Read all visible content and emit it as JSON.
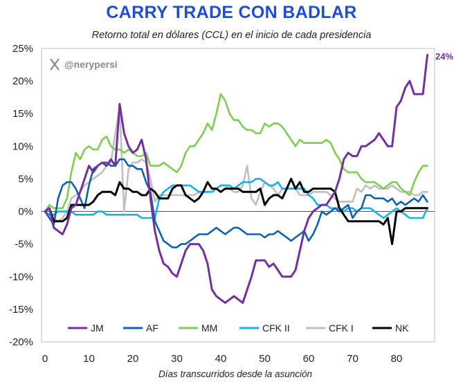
{
  "title": "CARRY TRADE CON BADLAR",
  "subtitle": "Retorno total en dólares (CCL) en el inicio de cada presidencia",
  "watermark": "@nerypersi",
  "chart_data": {
    "type": "line",
    "title": "CARRY TRADE CON BADLAR",
    "subtitle": "Retorno total en dólares (CCL) en el inicio de cada presidencia",
    "xlabel": "Días transcurridos desde la asunción",
    "ylabel": "",
    "xlim": [
      0,
      88
    ],
    "ylim": [
      -20,
      25
    ],
    "xticks": [
      0,
      10,
      20,
      30,
      40,
      50,
      60,
      70,
      80
    ],
    "yticks": [
      25,
      20,
      15,
      10,
      5,
      0,
      -5,
      -10,
      -15,
      -20
    ],
    "ytick_labels": [
      "25%",
      "20%",
      "15%",
      "10%",
      "5%",
      "0%",
      "-5%",
      "-10%",
      "-15%",
      "-20%"
    ],
    "legend_position": "bottom",
    "end_label": {
      "series": "JM",
      "text": "24%"
    },
    "series": [
      {
        "name": "JM",
        "color": "#7030a0",
        "x": [
          0,
          1,
          2,
          3,
          4,
          5,
          6,
          7,
          8,
          9,
          10,
          11,
          12,
          13,
          14,
          15,
          16,
          17,
          18,
          19,
          20,
          21,
          22,
          23,
          24,
          25,
          26,
          27,
          28,
          29,
          30,
          31,
          32,
          33,
          34,
          35,
          36,
          37,
          38,
          39,
          40,
          41,
          42,
          43,
          44,
          45,
          46,
          47,
          48,
          49,
          50,
          51,
          52,
          53,
          54,
          55,
          56,
          57,
          58,
          59,
          60,
          61,
          62,
          63,
          64,
          65,
          66,
          67,
          68,
          69,
          70,
          71,
          72,
          73,
          74,
          75,
          76,
          77,
          78,
          79,
          80,
          81,
          82,
          83,
          84,
          85,
          86,
          87
        ],
        "values": [
          0,
          0.5,
          -2.5,
          -3,
          -3.5,
          -2,
          0.5,
          1,
          3,
          5,
          7,
          6,
          7,
          7.5,
          7,
          8,
          7,
          16.5,
          12,
          10,
          9,
          9.5,
          11,
          8,
          2,
          -3,
          -6,
          -8,
          -8.5,
          -9.5,
          -10,
          -8,
          -6,
          -5,
          -5,
          -5,
          -6,
          -8,
          -12,
          -13,
          -13.5,
          -14,
          -13.5,
          -13,
          -13.5,
          -14,
          -12,
          -10,
          -7.5,
          -7.5,
          -7.5,
          -8.5,
          -8,
          -9,
          -10,
          -10,
          -10,
          -9,
          -6,
          -3,
          -1,
          0,
          0.5,
          1,
          1,
          2,
          3,
          5,
          8,
          9,
          8.5,
          8.5,
          10,
          10,
          10.5,
          11,
          12,
          11,
          10,
          10,
          16,
          17,
          19,
          20,
          18,
          18,
          18,
          24
        ]
      },
      {
        "name": "AF",
        "color": "#1060b0",
        "x": [
          0,
          1,
          2,
          3,
          4,
          5,
          6,
          7,
          8,
          9,
          10,
          11,
          12,
          13,
          14,
          15,
          16,
          17,
          18,
          19,
          20,
          21,
          22,
          23,
          24,
          25,
          26,
          27,
          28,
          29,
          30,
          31,
          32,
          33,
          34,
          35,
          36,
          37,
          38,
          39,
          40,
          41,
          42,
          43,
          44,
          45,
          46,
          47,
          48,
          49,
          50,
          51,
          52,
          53,
          54,
          55,
          56,
          57,
          58,
          59,
          60,
          61,
          62,
          63,
          64,
          65,
          66,
          67,
          68,
          69,
          70,
          71,
          72,
          73,
          74,
          75,
          76,
          77,
          78,
          79,
          80,
          81,
          82,
          83,
          84,
          85,
          86,
          87
        ],
        "values": [
          0,
          -1,
          -2,
          2,
          4,
          4.5,
          4.5,
          3.5,
          2,
          0.5,
          4,
          6.5,
          7,
          7.5,
          7.5,
          7,
          7,
          8,
          8,
          7,
          7,
          6.5,
          6.5,
          4.5,
          3,
          -1.5,
          -3,
          -4.5,
          -5,
          -5.5,
          -5.5,
          -5,
          -5,
          -4.5,
          -4,
          -3.5,
          -3.5,
          -3.5,
          -3,
          -2.5,
          -3,
          -3.5,
          -3,
          -2.5,
          -2.5,
          -3,
          -3.5,
          -3.5,
          -3.5,
          -3.5,
          -4,
          -3.5,
          -3.5,
          -3,
          -3.5,
          -4,
          -4.5,
          -4,
          -3.5,
          -3,
          -4.5,
          -3.5,
          -2,
          0,
          -0.5,
          0,
          0.5,
          0,
          0.5,
          1,
          -1,
          0,
          0.5,
          2.5,
          2.5,
          2,
          2,
          2,
          1.5,
          2,
          1,
          1.5,
          1,
          1.5,
          2,
          1.5,
          2.5,
          1.5
        ]
      },
      {
        "name": "MM",
        "color": "#7ecc50",
        "x": [
          0,
          1,
          2,
          3,
          4,
          5,
          6,
          7,
          8,
          9,
          10,
          11,
          12,
          13,
          14,
          15,
          16,
          17,
          18,
          19,
          20,
          21,
          22,
          23,
          24,
          25,
          26,
          27,
          28,
          29,
          30,
          31,
          32,
          33,
          34,
          35,
          36,
          37,
          38,
          39,
          40,
          41,
          42,
          43,
          44,
          45,
          46,
          47,
          48,
          49,
          50,
          51,
          52,
          53,
          54,
          55,
          56,
          57,
          58,
          59,
          60,
          61,
          62,
          63,
          64,
          65,
          66,
          67,
          68,
          69,
          70,
          71,
          72,
          73,
          74,
          75,
          76,
          77,
          78,
          79,
          80,
          81,
          82,
          83,
          84,
          85,
          86,
          87
        ],
        "values": [
          0,
          1,
          0.5,
          0.5,
          0.5,
          2,
          6,
          9,
          8,
          9.5,
          10,
          9.5,
          9.5,
          11,
          11.5,
          10,
          9.5,
          9.5,
          9,
          9.5,
          9,
          8.5,
          8.5,
          9,
          7,
          7,
          7,
          7.5,
          7,
          6.5,
          6,
          7,
          9,
          10,
          10,
          11,
          12,
          13.5,
          12.5,
          15,
          18,
          17,
          15,
          14,
          14,
          13,
          12.5,
          12.5,
          12,
          12,
          13.5,
          13,
          13.5,
          13.5,
          13,
          12,
          11,
          10,
          11,
          10.5,
          10.5,
          10.5,
          10.5,
          10.5,
          11,
          10.5,
          9,
          8,
          6.5,
          6,
          6,
          6,
          5,
          4.5,
          4.5,
          4.5,
          4,
          3.5,
          4,
          4.5,
          4.5,
          3.5,
          3,
          2.5,
          4.5,
          6,
          7,
          7
        ]
      },
      {
        "name": "CFK II",
        "color": "#1ab0ea",
        "x": [
          0,
          1,
          2,
          3,
          4,
          5,
          6,
          7,
          8,
          9,
          10,
          11,
          12,
          13,
          14,
          15,
          16,
          17,
          18,
          19,
          20,
          21,
          22,
          23,
          24,
          25,
          26,
          27,
          28,
          29,
          30,
          31,
          32,
          33,
          34,
          35,
          36,
          37,
          38,
          39,
          40,
          41,
          42,
          43,
          44,
          45,
          46,
          47,
          48,
          49,
          50,
          51,
          52,
          53,
          54,
          55,
          56,
          57,
          58,
          59,
          60,
          61,
          62,
          63,
          64,
          65,
          66,
          67,
          68,
          69,
          70,
          71,
          72,
          73,
          74,
          75,
          76,
          77,
          78,
          79,
          80,
          81,
          82,
          83,
          84,
          85,
          86,
          87
        ],
        "values": [
          0,
          -0.5,
          -0.5,
          0,
          0,
          0,
          0,
          -0.5,
          -0.5,
          -0.5,
          -0.5,
          -0.5,
          0,
          0,
          -0.5,
          -0.5,
          -0.5,
          -0.5,
          -0.5,
          -0.5,
          -0.5,
          -0.5,
          -1,
          -1,
          -1,
          -1,
          2,
          3,
          3.5,
          4,
          4,
          4,
          4,
          4,
          3.5,
          3,
          3,
          3,
          3,
          3.5,
          4,
          4,
          4,
          3.5,
          4,
          4.5,
          4.5,
          4.5,
          5,
          5,
          4.5,
          4,
          4,
          4.5,
          3.5,
          3.5,
          3.5,
          3.5,
          3.5,
          3.5,
          2.5,
          2,
          1,
          1,
          1,
          0.5,
          0.5,
          0.5,
          0,
          0.5,
          0.5,
          0,
          0.5,
          0.5,
          0.5,
          0,
          -0.5,
          -1,
          -0.5,
          0,
          0.5,
          0,
          -0.5,
          -1,
          -1,
          -1,
          -1,
          0.5
        ]
      },
      {
        "name": "CFK I",
        "color": "#bfbfbf",
        "x": [
          0,
          1,
          2,
          3,
          4,
          5,
          6,
          7,
          8,
          9,
          10,
          11,
          12,
          13,
          14,
          15,
          16,
          17,
          18,
          19,
          20,
          21,
          22,
          23,
          24,
          25,
          26,
          27,
          28,
          29,
          30,
          31,
          32,
          33,
          34,
          35,
          36,
          37,
          38,
          39,
          40,
          41,
          42,
          43,
          44,
          45,
          46,
          47,
          48,
          49,
          50,
          51,
          52,
          53,
          54,
          55,
          56,
          57,
          58,
          59,
          60,
          61,
          62,
          63,
          64,
          65,
          66,
          67,
          68,
          69,
          70,
          71,
          72,
          73,
          74,
          75,
          76,
          77,
          78,
          79,
          80,
          81,
          82,
          83,
          84,
          85,
          86,
          87
        ],
        "values": [
          0,
          -0.5,
          -1,
          -1.5,
          -1,
          0,
          2,
          2.5,
          3,
          4,
          4.5,
          5,
          5.5,
          6,
          7,
          7.5,
          12,
          16,
          0,
          6.5,
          7.5,
          7.5,
          8,
          7.5,
          5,
          1.5,
          2.5,
          2.5,
          2.5,
          2.5,
          2.5,
          2.5,
          2.5,
          2.5,
          2.5,
          3,
          3,
          3,
          3,
          3.5,
          4,
          4,
          3.5,
          3,
          3,
          4,
          7,
          2,
          1,
          3,
          4.5,
          4,
          3.5,
          2.5,
          3.5,
          3.5,
          3.5,
          3.5,
          2.5,
          2.5,
          2.5,
          3,
          3,
          3,
          3,
          2.5,
          2,
          1.5,
          1.5,
          1.5,
          1.5,
          3.5,
          3,
          4,
          3.5,
          4,
          3.5,
          3.5,
          3.5,
          4,
          3.5,
          3,
          3,
          3,
          2.5,
          2.5,
          3,
          3
        ]
      },
      {
        "name": "NK",
        "color": "#000000",
        "x": [
          0,
          1,
          2,
          3,
          4,
          5,
          6,
          7,
          8,
          9,
          10,
          11,
          12,
          13,
          14,
          15,
          16,
          17,
          18,
          19,
          20,
          21,
          22,
          23,
          24,
          25,
          26,
          27,
          28,
          29,
          30,
          31,
          32,
          33,
          34,
          35,
          36,
          37,
          38,
          39,
          40,
          41,
          42,
          43,
          44,
          45,
          46,
          47,
          48,
          49,
          50,
          51,
          52,
          53,
          54,
          55,
          56,
          57,
          58,
          59,
          60,
          61,
          62,
          63,
          64,
          65,
          66,
          67,
          68,
          69,
          70,
          71,
          72,
          73,
          74,
          75,
          76,
          77,
          78,
          79,
          80,
          81,
          82,
          83,
          84,
          85,
          86,
          87
        ],
        "values": [
          0,
          0.5,
          -1.5,
          -1.5,
          -1.5,
          -1,
          1,
          1,
          1,
          1,
          1,
          1.5,
          2.5,
          3,
          3,
          3,
          2.5,
          4.5,
          3.5,
          3.5,
          3,
          3,
          2.5,
          2.5,
          3.5,
          3,
          2,
          2,
          2,
          3.5,
          4,
          4,
          2.5,
          2,
          1.5,
          2,
          3,
          4.5,
          3.5,
          3.5,
          3,
          3.5,
          3.5,
          3.5,
          3.5,
          3,
          3,
          3,
          3,
          3.5,
          1,
          2,
          2.5,
          2.5,
          2,
          3.5,
          5,
          3.5,
          4.5,
          3,
          3,
          3.5,
          3.5,
          3.5,
          3.5,
          3.5,
          3,
          0.5,
          -0.5,
          -1.5,
          -1.5,
          -1.5,
          -1.5,
          -1.5,
          -1.5,
          -1.5,
          -1.5,
          -2,
          -1,
          -5,
          0,
          0,
          0.5,
          0.5,
          0.5,
          0.5,
          0.5,
          0.5
        ]
      }
    ]
  }
}
